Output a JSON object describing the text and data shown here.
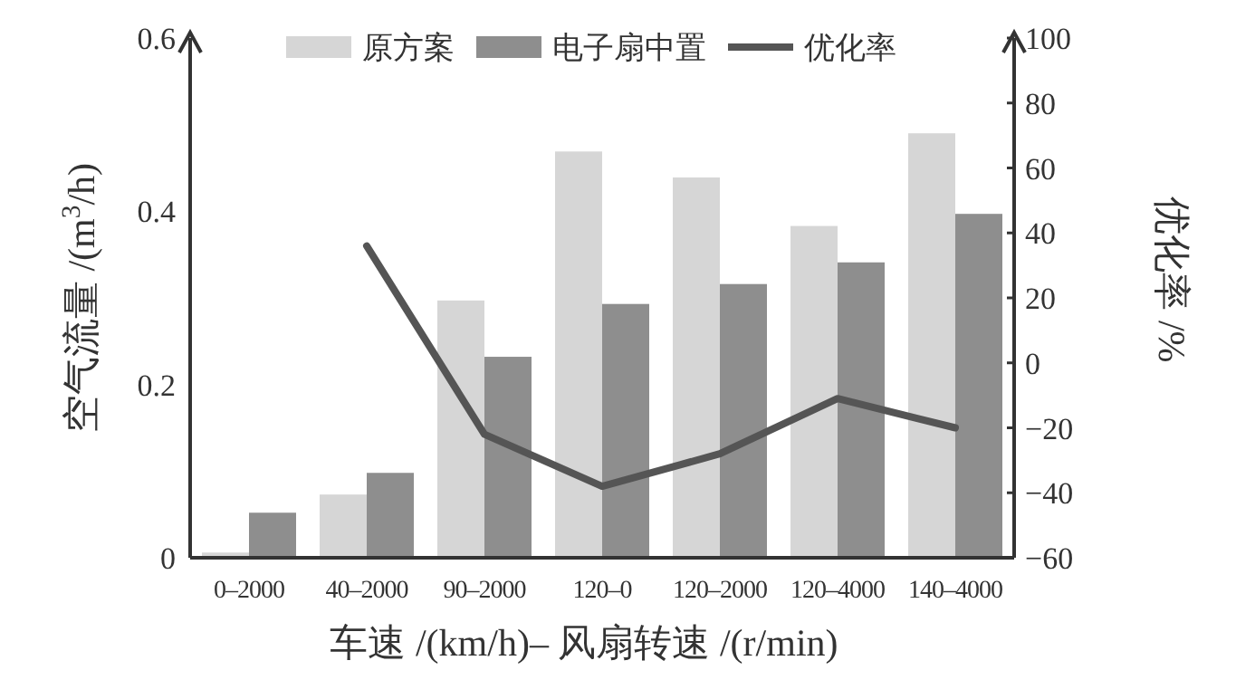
{
  "chart_data": {
    "type": "bar",
    "categories": [
      "0–2000",
      "40–2000",
      "90–2000",
      "120–0",
      "120–2000",
      "120–4000",
      "140–4000"
    ],
    "series": [
      {
        "name": "原方案",
        "color": "#d6d6d6",
        "values": [
          0.006,
          0.073,
          0.297,
          0.469,
          0.439,
          0.383,
          0.49
        ]
      },
      {
        "name": "电子扇中置",
        "color": "#8e8e8e",
        "values": [
          0.052,
          0.098,
          0.232,
          0.293,
          0.316,
          0.341,
          0.397
        ]
      },
      {
        "name": "优化率",
        "type": "line",
        "axis": "y2",
        "color": "#555555",
        "values": [
          null,
          36,
          -22,
          -38,
          -28,
          -11,
          -20
        ]
      }
    ],
    "xlabel": "车速 /(km/h)– 风扇转速 /(r/min)",
    "ylabel": "空气流量 /(m$^{3}$/h)",
    "y2label": "优化率 /%",
    "ylim": [
      0,
      0.6
    ],
    "yticks": [
      0,
      0.2,
      0.4,
      0.6
    ],
    "y2lim": [
      -60,
      100
    ],
    "y2ticks": [
      -60,
      -40,
      -20,
      0,
      20,
      40,
      60,
      80,
      100
    ],
    "legend": "top"
  }
}
